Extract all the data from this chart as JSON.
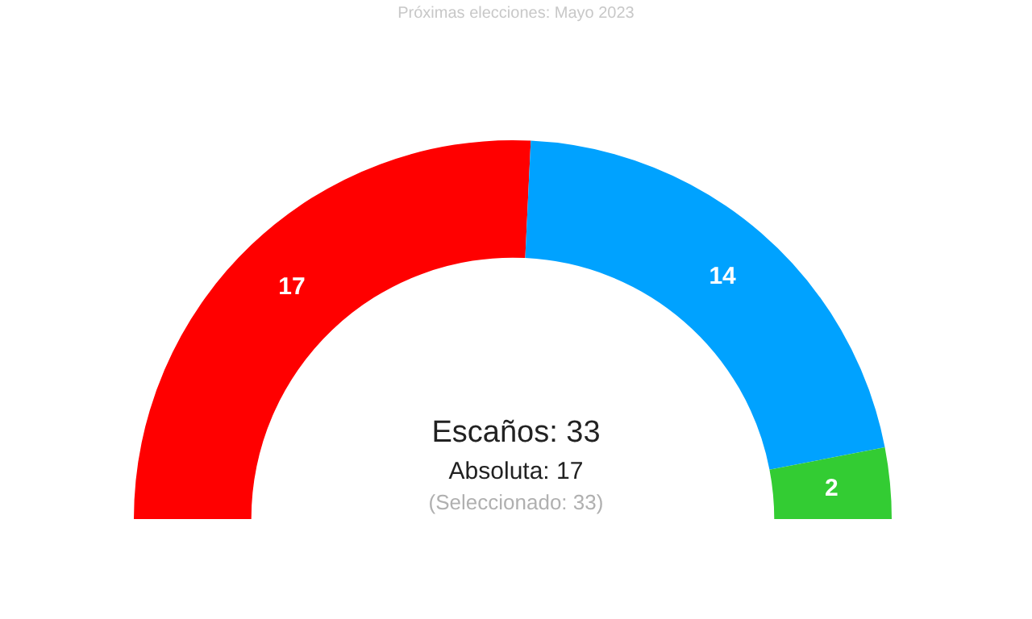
{
  "chart_data": {
    "type": "donut",
    "subtitle": "Próximas elecciones: Mayo 2023",
    "categories": [
      null,
      null,
      null
    ],
    "values": [
      17,
      14,
      2
    ],
    "colors": [
      "#ff0000",
      "#00a2ff",
      "#33cc33"
    ],
    "data_labels": true,
    "legend": false,
    "annotations": [
      "Escaños: 33",
      "Absoluta: 17",
      "(Seleccionado: 33)"
    ]
  }
}
